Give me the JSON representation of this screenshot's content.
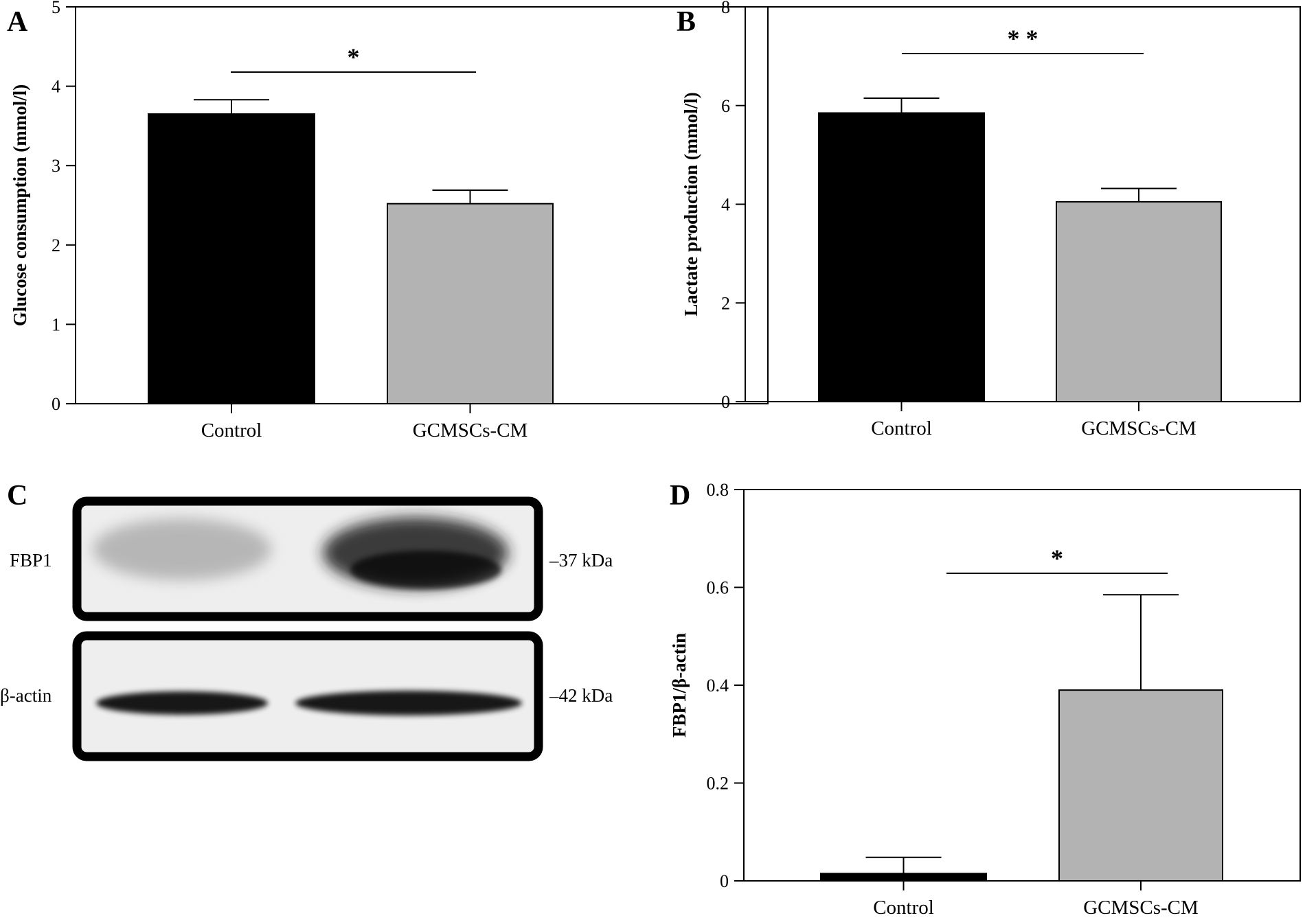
{
  "chart_data": [
    {
      "panel": "A",
      "type": "bar",
      "categories": [
        "Control",
        "GCMSCs-CM"
      ],
      "values": [
        3.65,
        2.52
      ],
      "errors": [
        0.18,
        0.17
      ],
      "colors": [
        "#000000",
        "#b3b3b3"
      ],
      "ylabel": "Glucose consumption (mmol/l)",
      "ylim": [
        0,
        5
      ],
      "yticks": [
        0,
        1,
        2,
        3,
        4,
        5
      ],
      "significance": "*"
    },
    {
      "panel": "B",
      "type": "bar",
      "categories": [
        "Control",
        "GCMSCs-CM"
      ],
      "values": [
        5.85,
        4.05
      ],
      "errors": [
        0.3,
        0.27
      ],
      "colors": [
        "#000000",
        "#b3b3b3"
      ],
      "ylabel": "Lactate production (mmol/l)",
      "ylim": [
        0,
        8
      ],
      "yticks": [
        0,
        2,
        4,
        6,
        8
      ],
      "significance": "* *"
    },
    {
      "panel": "D",
      "type": "bar",
      "categories": [
        "Control",
        "GCMSCs-CM"
      ],
      "values": [
        0.015,
        0.39
      ],
      "errors": [
        0.033,
        0.195
      ],
      "colors": [
        "#000000",
        "#b3b3b3"
      ],
      "ylabel": "FBP1/β-actin",
      "ylim": [
        0,
        0.8
      ],
      "yticks": [
        0,
        0.2,
        0.4,
        0.6,
        0.8
      ],
      "yticklabels": [
        "0",
        "0.2",
        "0.4",
        "0.6",
        "0.8"
      ],
      "significance": "*"
    }
  ],
  "blot": {
    "panel": "C",
    "rows": [
      {
        "protein": "FBP1",
        "marker": "–37 kDa"
      },
      {
        "protein": "β-actin",
        "marker": "–42 kDa"
      }
    ]
  }
}
